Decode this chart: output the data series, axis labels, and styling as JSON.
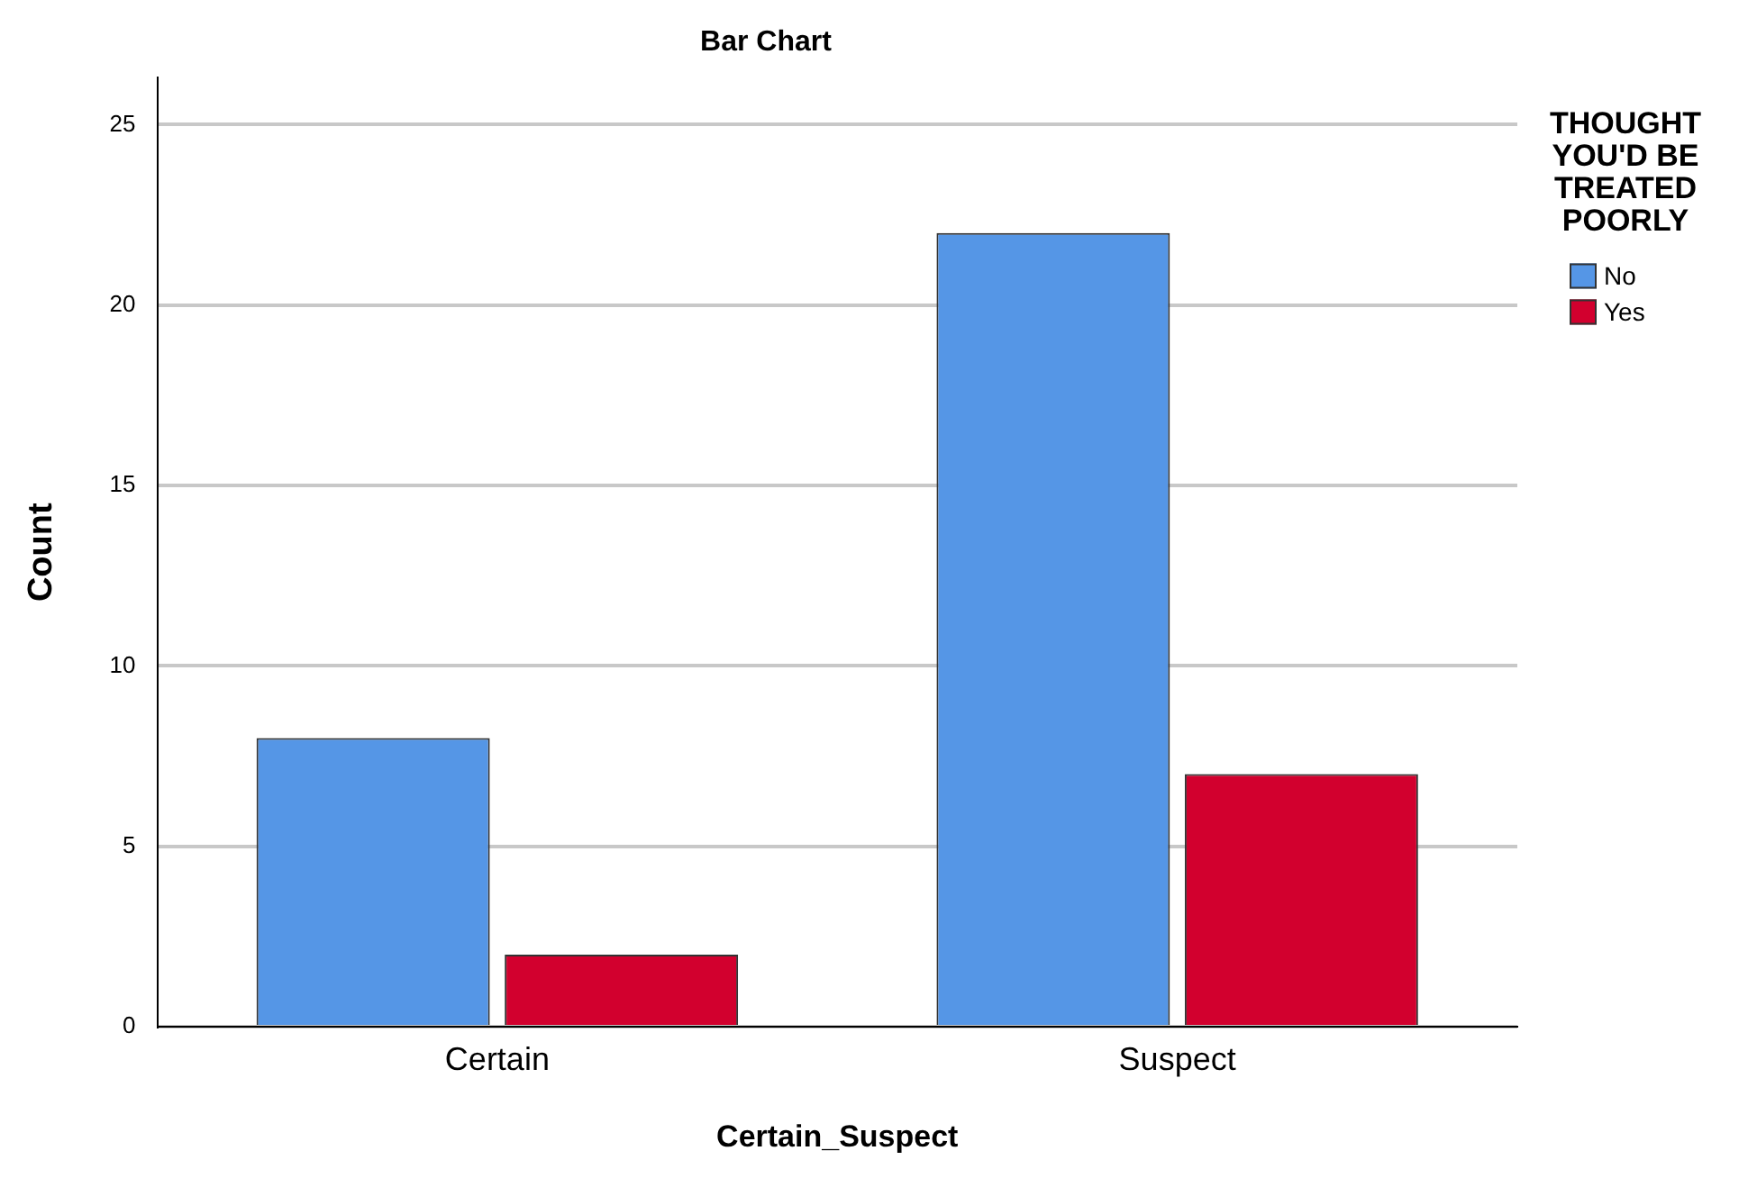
{
  "chart_data": {
    "type": "bar",
    "title": "Bar Chart",
    "xlabel": "Certain_Suspect",
    "ylabel": "Count",
    "legend_title": "THOUGHT YOU'D BE TREATED POORLY",
    "categories": [
      "Certain",
      "Suspect"
    ],
    "series": [
      {
        "name": "No",
        "color": "#5596e6",
        "values": [
          8,
          22
        ]
      },
      {
        "name": "Yes",
        "color": "#d2002e",
        "values": [
          2,
          7
        ]
      }
    ],
    "ylim": [
      0,
      26.3
    ],
    "yticks": [
      0,
      5,
      10,
      15,
      20,
      25
    ],
    "grid": "y",
    "legend": "top right"
  }
}
